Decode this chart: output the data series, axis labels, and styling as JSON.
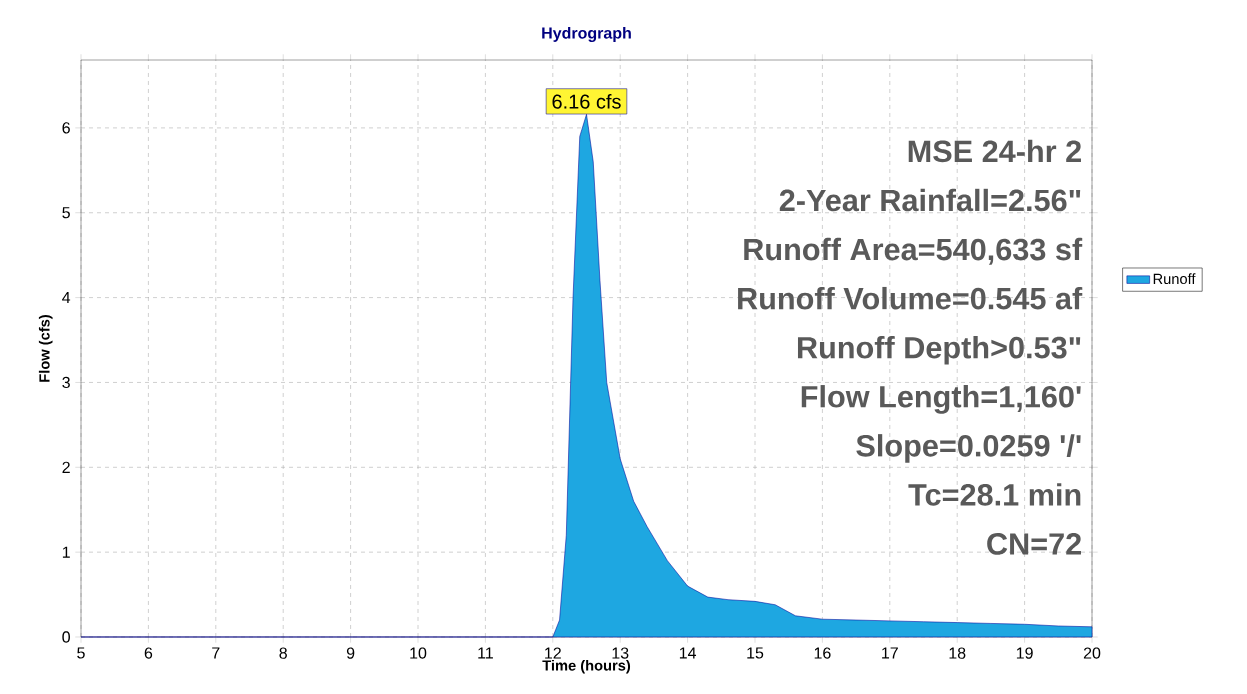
{
  "chart_data": {
    "type": "area",
    "title": "Hydrograph",
    "xlabel": "Time  (hours)",
    "ylabel": "Flow  (cfs)",
    "xlim": [
      5,
      20
    ],
    "ylim": [
      0,
      6.8
    ],
    "xticks": [
      5,
      6,
      7,
      8,
      9,
      10,
      11,
      12,
      13,
      14,
      15,
      16,
      17,
      18,
      19,
      20
    ],
    "yticks": [
      0,
      1,
      2,
      3,
      4,
      5,
      6
    ],
    "grid": true,
    "legend": "right",
    "series": [
      {
        "name": "Runoff",
        "color": "#1ea7e1",
        "x": [
          5,
          12,
          12.1,
          12.2,
          12.3,
          12.4,
          12.5,
          12.6,
          12.7,
          12.8,
          13.0,
          13.2,
          13.4,
          13.7,
          14.0,
          14.3,
          14.6,
          15.0,
          15.3,
          15.6,
          16.0,
          16.5,
          17,
          17.5,
          18,
          18.5,
          19,
          19.5,
          20
        ],
        "values": [
          0,
          0,
          0.2,
          1.2,
          4.0,
          5.9,
          6.16,
          5.6,
          4.2,
          3.0,
          2.1,
          1.6,
          1.3,
          0.9,
          0.6,
          0.47,
          0.44,
          0.42,
          0.38,
          0.25,
          0.21,
          0.2,
          0.19,
          0.18,
          0.17,
          0.16,
          0.15,
          0.13,
          0.12
        ]
      }
    ],
    "annotations": [
      {
        "text": "6.16 cfs",
        "x": 12.5,
        "y": 6.16
      },
      "MSE 24-hr 2",
      "2-Year Rainfall=2.56\"",
      "Runoff Area=540,633 sf",
      "Runoff Volume=0.545 af",
      "Runoff Depth>0.53\"",
      "Flow Length=1,160'",
      "Slope=0.0259 '/'",
      "Tc=28.1 min",
      "CN=72"
    ]
  }
}
